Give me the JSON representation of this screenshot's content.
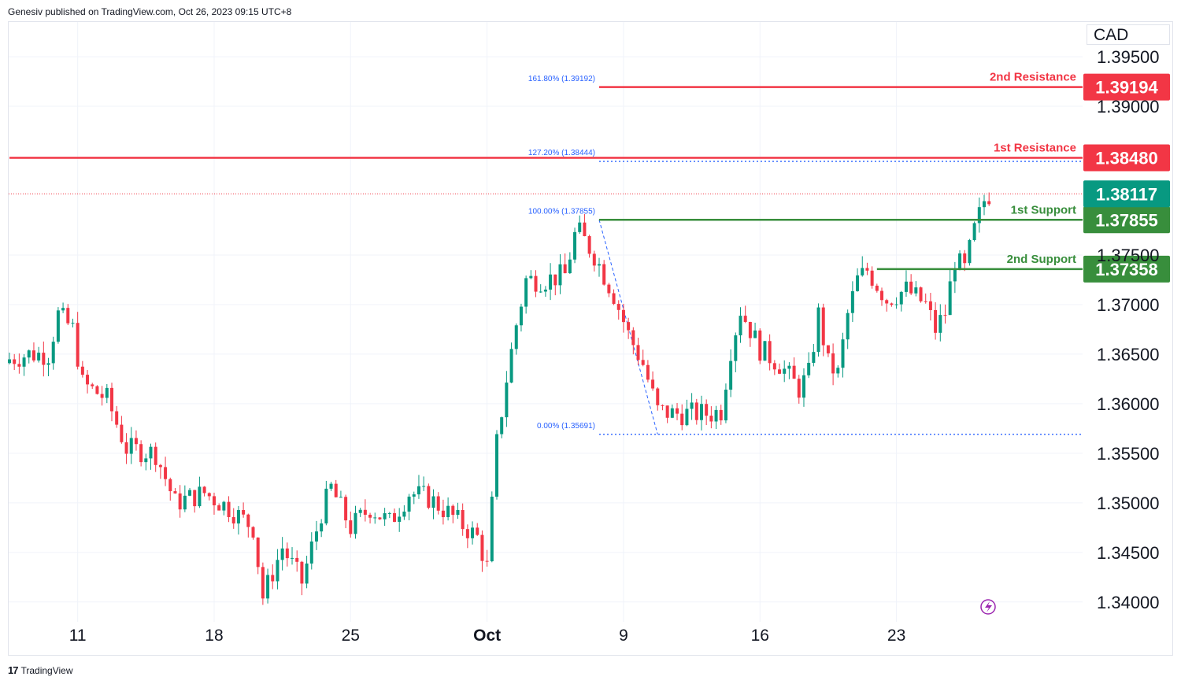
{
  "header": {
    "text": "Genesiv published on TradingView.com, Oct 26, 2023 09:15 UTC+8"
  },
  "footer": {
    "logo": "17",
    "brand": "TradingView"
  },
  "currency": "CAD",
  "colors": {
    "up": "#089981",
    "down": "#f23645",
    "resistance": "#f23645",
    "support": "#388e3c",
    "current": "#089981",
    "fib": "#2962ff",
    "grid": "#f0f3fa"
  },
  "chart_data": {
    "type": "candlestick",
    "symbol_quote": "CAD",
    "ylim": [
      1.338,
      1.3985
    ],
    "y_ticks": [
      1.395,
      1.39,
      1.375,
      1.37,
      1.365,
      1.36,
      1.355,
      1.35,
      1.345,
      1.34
    ],
    "y_tick_labels": [
      "1.39500",
      "1.39000",
      "1.37500",
      "1.37000",
      "1.36500",
      "1.36000",
      "1.35500",
      "1.35000",
      "1.34500",
      "1.34000"
    ],
    "x_ticks": [
      {
        "label": "11",
        "index": 14
      },
      {
        "label": "18",
        "index": 42
      },
      {
        "label": "25",
        "index": 70
      },
      {
        "label": "Oct",
        "index": 98,
        "bold": true
      },
      {
        "label": "9",
        "index": 126
      },
      {
        "label": "16",
        "index": 154
      },
      {
        "label": "23",
        "index": 182
      }
    ],
    "candle_count": 202,
    "anchors": [
      [
        0,
        1.3645
      ],
      [
        4,
        1.365
      ],
      [
        8,
        1.365
      ],
      [
        10,
        1.369
      ],
      [
        13,
        1.3675
      ],
      [
        15,
        1.362
      ],
      [
        20,
        1.3605
      ],
      [
        24,
        1.3555
      ],
      [
        30,
        1.355
      ],
      [
        34,
        1.35
      ],
      [
        40,
        1.351
      ],
      [
        45,
        1.3495
      ],
      [
        50,
        1.3475
      ],
      [
        52,
        1.3405
      ],
      [
        56,
        1.3455
      ],
      [
        60,
        1.342
      ],
      [
        64,
        1.349
      ],
      [
        66,
        1.3515
      ],
      [
        70,
        1.3475
      ],
      [
        74,
        1.3495
      ],
      [
        78,
        1.348
      ],
      [
        82,
        1.351
      ],
      [
        86,
        1.3505
      ],
      [
        90,
        1.349
      ],
      [
        96,
        1.3465
      ],
      [
        98,
        1.3435
      ],
      [
        100,
        1.356
      ],
      [
        102,
        1.3625
      ],
      [
        104,
        1.368
      ],
      [
        106,
        1.3725
      ],
      [
        110,
        1.3725
      ],
      [
        114,
        1.373
      ],
      [
        116,
        1.377
      ],
      [
        117,
        1.3772
      ],
      [
        120,
        1.375
      ],
      [
        124,
        1.371
      ],
      [
        127,
        1.367
      ],
      [
        130,
        1.364
      ],
      [
        133,
        1.3593
      ],
      [
        136,
        1.359
      ],
      [
        140,
        1.359
      ],
      [
        144,
        1.359
      ],
      [
        146,
        1.3593
      ],
      [
        148,
        1.3655
      ],
      [
        150,
        1.3695
      ],
      [
        154,
        1.3655
      ],
      [
        158,
        1.364
      ],
      [
        162,
        1.3615
      ],
      [
        164,
        1.363
      ],
      [
        166,
        1.369
      ],
      [
        168,
        1.364
      ],
      [
        170,
        1.363
      ],
      [
        172,
        1.369
      ],
      [
        174,
        1.3725
      ],
      [
        176,
        1.3735
      ],
      [
        180,
        1.3705
      ],
      [
        184,
        1.3715
      ],
      [
        188,
        1.37
      ],
      [
        190,
        1.3675
      ],
      [
        192,
        1.3692
      ],
      [
        194,
        1.3745
      ],
      [
        196,
        1.3735
      ],
      [
        198,
        1.3775
      ],
      [
        200,
        1.3805
      ],
      [
        201,
        1.3811
      ]
    ],
    "current_price": 1.38117,
    "current_label": "1.38117",
    "levels": [
      {
        "name": "2nd Resistance",
        "value": 1.39194,
        "label": "1.39194",
        "kind": "resistance",
        "start_index": 121
      },
      {
        "name": "1st Resistance",
        "value": 1.3848,
        "label": "1.38480",
        "kind": "resistance",
        "start_index": 0
      },
      {
        "name": "1st Support",
        "value": 1.37855,
        "label": "1.37855",
        "kind": "support",
        "start_index": 121
      },
      {
        "name": "2nd Support",
        "value": 1.37358,
        "label": "1.37358",
        "kind": "support",
        "start_index": 178
      }
    ],
    "fib": {
      "levels": [
        {
          "label": "161.80% (1.39192)",
          "value": 1.39192
        },
        {
          "label": "127.20% (1.38444)",
          "value": 1.38444
        },
        {
          "label": "100.00% (1.37855)",
          "value": 1.37855
        },
        {
          "label": "0.00% (1.35691)",
          "value": 1.35691
        }
      ],
      "start_index": 121,
      "trend_from": [
        121,
        1.37855
      ],
      "trend_to": [
        133,
        1.35691
      ]
    }
  }
}
